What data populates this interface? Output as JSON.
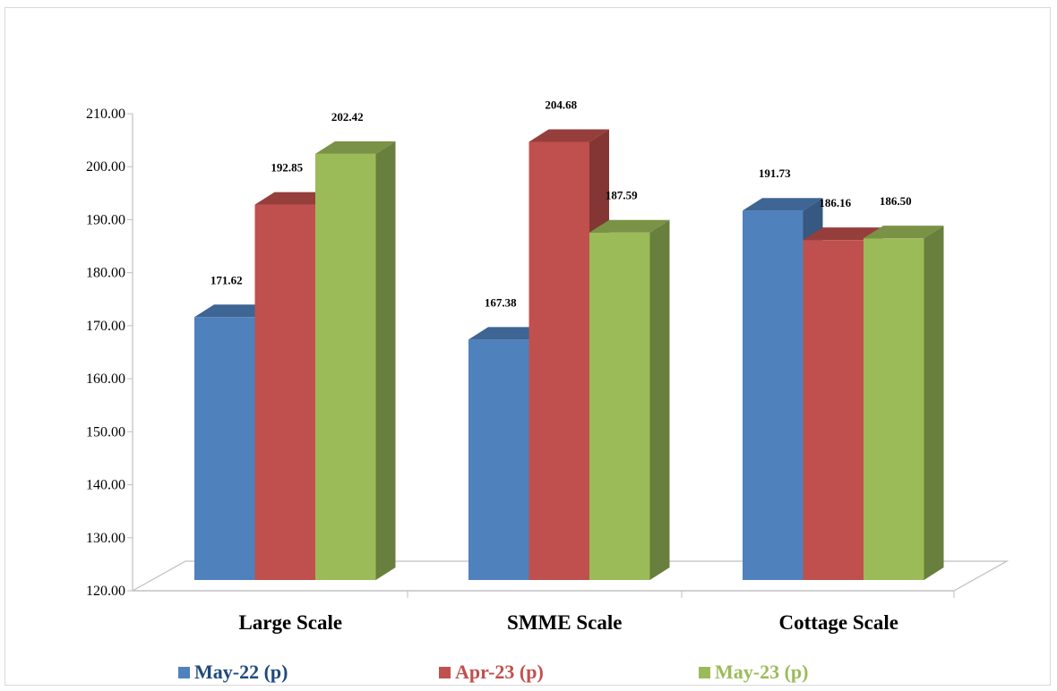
{
  "chart_data": {
    "type": "bar",
    "title": "",
    "xlabel": "",
    "ylabel": "",
    "ylim": [
      120,
      210
    ],
    "yticks": [
      "120.00",
      "130.00",
      "140.00",
      "150.00",
      "160.00",
      "170.00",
      "180.00",
      "190.00",
      "200.00",
      "210.00"
    ],
    "categories": [
      "Large Scale",
      "SMME Scale",
      "Cottage Scale"
    ],
    "series": [
      {
        "name": "May-22 (p)",
        "values": [
          171.62,
          167.38,
          191.73
        ],
        "labels": [
          "171.62",
          "167.38",
          "191.73"
        ],
        "color": "#4f81bd",
        "legend_color": "#1f497d"
      },
      {
        "name": "Apr-23 (p)",
        "values": [
          192.85,
          204.68,
          186.16
        ],
        "labels": [
          "192.85",
          "204.68",
          "186.16"
        ],
        "color": "#c0504d",
        "legend_color": "#c0504d"
      },
      {
        "name": "May-23 (p)",
        "values": [
          202.42,
          187.59,
          186.5
        ],
        "labels": [
          "202.42",
          "187.59",
          "186.50"
        ],
        "color": "#9bbb59",
        "legend_color": "#9bbb59"
      }
    ],
    "grid": false,
    "style": "3d-clustered-column",
    "legend_position": "bottom"
  }
}
